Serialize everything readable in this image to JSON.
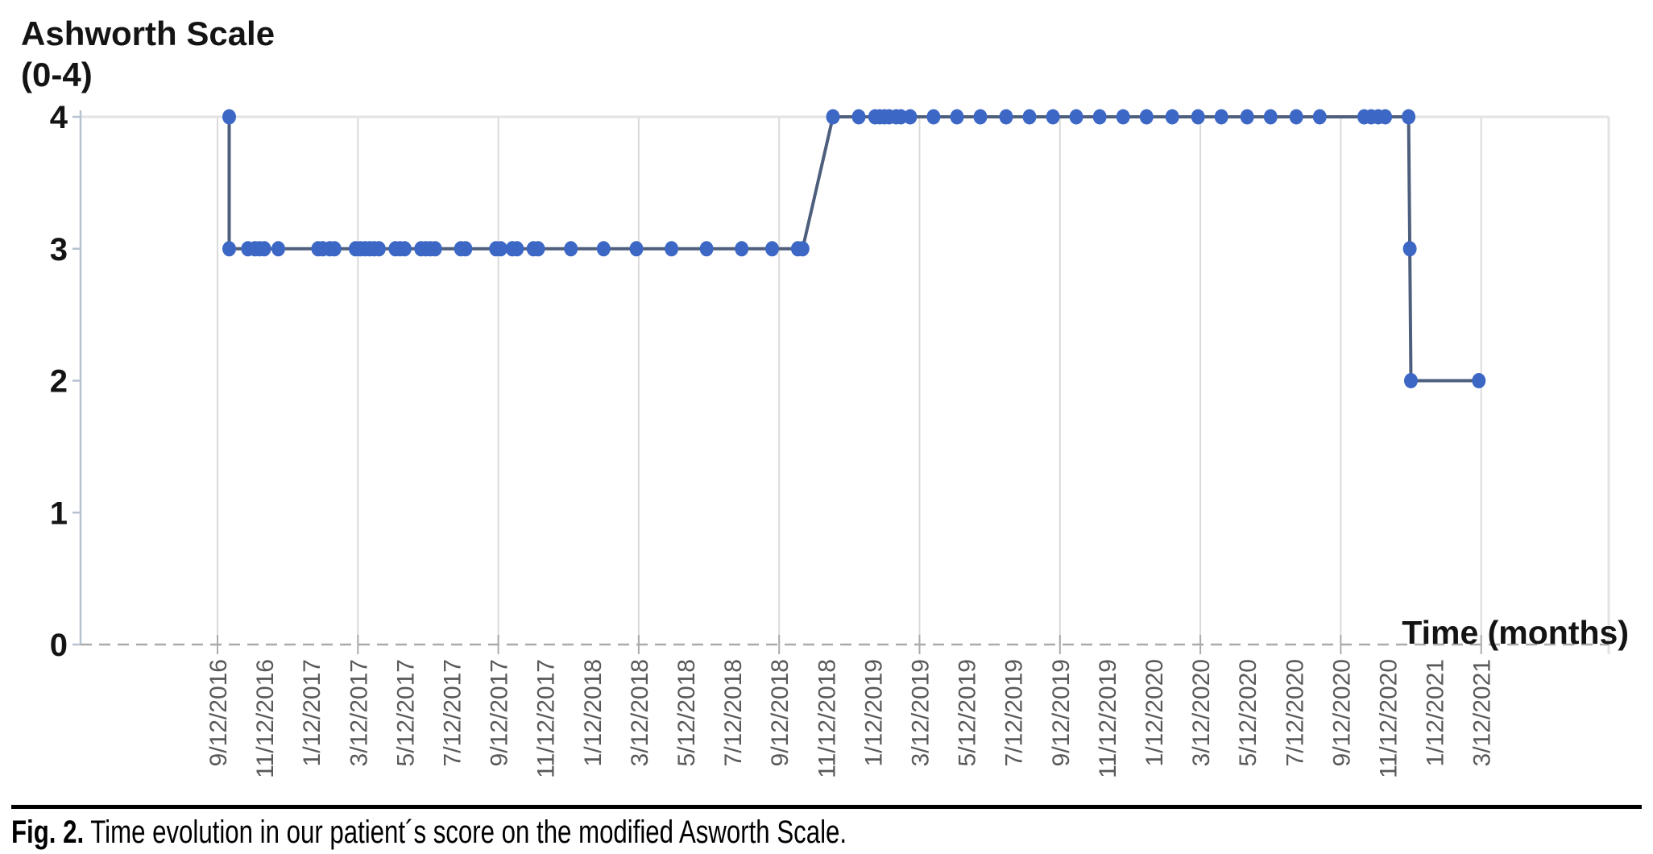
{
  "figure": {
    "caption_label": "Fig. 2.",
    "caption_text": " Time evolution in our patient´s score on the modified Asworth Scale."
  },
  "chart_data": {
    "type": "line",
    "title_line1": "Ashworth Scale",
    "title_line2": "(0-4)",
    "xlabel": "Time (months)",
    "ylabel": "Ashworth Scale (0-4)",
    "ylim": [
      0,
      4
    ],
    "yticks": [
      "4",
      "3",
      "2",
      "1",
      "0"
    ],
    "ytick_values": [
      4,
      3,
      2,
      1,
      0
    ],
    "x_tick_labels": [
      "9/12/2016",
      "11/12/2016",
      "1/12/2017",
      "3/12/2017",
      "5/12/2017",
      "7/12/2017",
      "9/12/2017",
      "11/12/2017",
      "1/12/2018",
      "3/12/2018",
      "5/12/2018",
      "7/12/2018",
      "9/12/2018",
      "11/12/2018",
      "1/12/2019",
      "3/12/2019",
      "5/12/2019",
      "7/12/2019",
      "9/12/2019",
      "11/12/2019",
      "1/12/2020",
      "3/12/2020",
      "5/12/2020",
      "7/12/2020",
      "9/12/2020",
      "11/12/2020",
      "1/12/2021",
      "3/12/2021"
    ],
    "x_tick_interval_months": 2,
    "gridline_every_n_ticks": 3,
    "grid_vertical": true,
    "grid_horizontal_top_only": true,
    "zero_line_dashed": true,
    "legend": "none",
    "x_unit": "months after 9/12/2016",
    "series": [
      {
        "name": "Modified Ashworth Scale score",
        "points": [
          [
            0.5,
            4
          ],
          [
            0.5,
            3
          ],
          [
            1.3,
            3
          ],
          [
            1.6,
            3
          ],
          [
            1.8,
            3
          ],
          [
            2.0,
            3
          ],
          [
            2.6,
            3
          ],
          [
            4.3,
            3
          ],
          [
            4.5,
            3
          ],
          [
            4.8,
            3
          ],
          [
            5.0,
            3
          ],
          [
            5.9,
            3
          ],
          [
            6.1,
            3
          ],
          [
            6.3,
            3
          ],
          [
            6.5,
            3
          ],
          [
            6.7,
            3
          ],
          [
            6.9,
            3
          ],
          [
            7.6,
            3
          ],
          [
            7.8,
            3
          ],
          [
            8.0,
            3
          ],
          [
            8.7,
            3
          ],
          [
            8.9,
            3
          ],
          [
            9.1,
            3
          ],
          [
            9.3,
            3
          ],
          [
            10.4,
            3
          ],
          [
            10.6,
            3
          ],
          [
            11.9,
            3
          ],
          [
            12.1,
            3
          ],
          [
            12.6,
            3
          ],
          [
            12.8,
            3
          ],
          [
            13.5,
            3
          ],
          [
            13.7,
            3
          ],
          [
            15.1,
            3
          ],
          [
            16.5,
            3
          ],
          [
            17.9,
            3
          ],
          [
            19.4,
            3
          ],
          [
            20.9,
            3
          ],
          [
            22.4,
            3
          ],
          [
            23.7,
            3
          ],
          [
            24.8,
            3
          ],
          [
            25.0,
            3
          ],
          [
            26.3,
            4
          ],
          [
            27.4,
            4
          ],
          [
            28.1,
            4
          ],
          [
            28.3,
            4
          ],
          [
            28.5,
            4
          ],
          [
            28.7,
            4
          ],
          [
            29.0,
            4
          ],
          [
            29.2,
            4
          ],
          [
            29.6,
            4
          ],
          [
            30.6,
            4
          ],
          [
            31.6,
            4
          ],
          [
            32.6,
            4
          ],
          [
            33.7,
            4
          ],
          [
            34.7,
            4
          ],
          [
            35.7,
            4
          ],
          [
            36.7,
            4
          ],
          [
            37.7,
            4
          ],
          [
            38.7,
            4
          ],
          [
            39.7,
            4
          ],
          [
            40.8,
            4
          ],
          [
            41.9,
            4
          ],
          [
            42.9,
            4
          ],
          [
            44.0,
            4
          ],
          [
            45.0,
            4
          ],
          [
            46.1,
            4
          ],
          [
            47.1,
            4
          ],
          [
            49.0,
            4
          ],
          [
            49.3,
            4
          ],
          [
            49.6,
            4
          ],
          [
            49.9,
            4
          ],
          [
            50.9,
            4
          ],
          [
            50.95,
            3
          ],
          [
            51.0,
            2
          ],
          [
            53.9,
            2
          ]
        ]
      }
    ],
    "colors": {
      "marker": "#3C67C5",
      "line": "#4E5F7D",
      "grid": "#DADADA",
      "border": "#E3E3E3",
      "y_axis": "#B6C1D1",
      "zero_dash": "#ABABAB",
      "x_tick_label": "#595959",
      "y_tick_label": "#141414"
    }
  }
}
